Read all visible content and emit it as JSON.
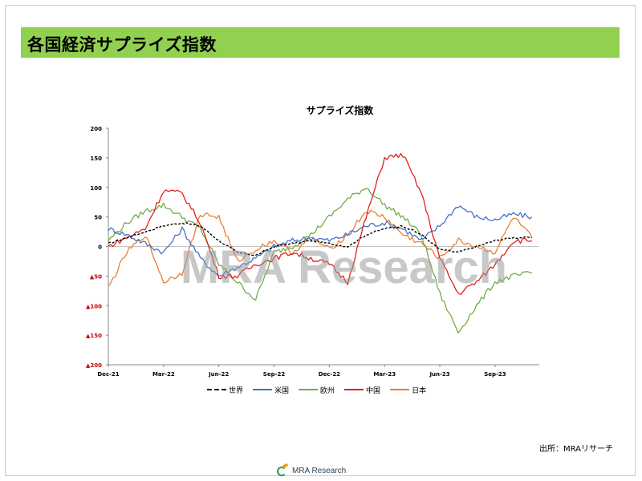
{
  "page": {
    "title": "各国経済サプライズ指数",
    "source": "出所：MRAリサーチ",
    "footer_logo_text": "MRA Research",
    "watermark": "MRA Research"
  },
  "chart_data": {
    "type": "line",
    "title": "サプライズ指数",
    "xlabel": "",
    "ylabel": "",
    "ylim": [
      -200,
      200
    ],
    "y_ticks": [
      200,
      150,
      100,
      50,
      0,
      -50,
      -100,
      -150,
      -200
    ],
    "y_tick_labels": [
      "200",
      "150",
      "100",
      "50",
      "0",
      "▲50",
      "▲100",
      "▲150",
      "▲200"
    ],
    "negative_tick_color": "#cc0000",
    "x_tick_labels": [
      "Dec-21",
      "Mar-22",
      "Jun-22",
      "Sep-22",
      "Dec-22",
      "Mar-23",
      "Jun-23",
      "Sep-23"
    ],
    "x_tick_dates": [
      "2021-12",
      "2022-03",
      "2022-06",
      "2022-09",
      "2022-12",
      "2023-03",
      "2023-06",
      "2023-09"
    ],
    "grid": false,
    "legend_position": "bottom",
    "series": [
      {
        "name": "世界",
        "color": "#000000",
        "dash": true,
        "x": [
          "2021-12",
          "2022-01",
          "2022-02",
          "2022-03",
          "2022-04",
          "2022-05",
          "2022-06",
          "2022-07",
          "2022-08",
          "2022-09",
          "2022-10",
          "2022-11",
          "2022-12",
          "2023-01",
          "2023-02",
          "2023-03",
          "2023-04",
          "2023-05",
          "2023-06",
          "2023-07",
          "2023-08",
          "2023-09",
          "2023-10",
          "2023-11"
        ],
        "values": [
          5,
          15,
          25,
          35,
          40,
          35,
          10,
          -10,
          -15,
          0,
          5,
          10,
          5,
          0,
          20,
          30,
          35,
          20,
          -5,
          -10,
          0,
          10,
          15,
          15
        ]
      },
      {
        "name": "米国",
        "color": "#4472c4",
        "dash": false,
        "x": [
          "2021-12",
          "2022-01",
          "2022-02",
          "2022-03",
          "2022-04",
          "2022-05",
          "2022-06",
          "2022-07",
          "2022-08",
          "2022-09",
          "2022-10",
          "2022-11",
          "2022-12",
          "2023-01",
          "2023-02",
          "2023-03",
          "2023-04",
          "2023-05",
          "2023-06",
          "2023-07",
          "2023-08",
          "2023-09",
          "2023-10",
          "2023-11"
        ],
        "values": [
          30,
          20,
          5,
          -10,
          30,
          -20,
          -50,
          -35,
          -20,
          0,
          10,
          15,
          10,
          20,
          35,
          40,
          30,
          10,
          35,
          70,
          50,
          45,
          55,
          50
        ]
      },
      {
        "name": "欧州",
        "color": "#70ad47",
        "dash": false,
        "x": [
          "2021-12",
          "2022-01",
          "2022-02",
          "2022-03",
          "2022-04",
          "2022-05",
          "2022-06",
          "2022-07",
          "2022-08",
          "2022-09",
          "2022-10",
          "2022-11",
          "2022-12",
          "2023-01",
          "2023-02",
          "2023-03",
          "2023-04",
          "2023-05",
          "2023-06",
          "2023-07",
          "2023-08",
          "2023-09",
          "2023-10",
          "2023-11"
        ],
        "values": [
          10,
          40,
          60,
          70,
          50,
          30,
          -30,
          -60,
          -90,
          -10,
          0,
          20,
          50,
          80,
          100,
          70,
          50,
          20,
          -80,
          -145,
          -100,
          -60,
          -50,
          -45
        ]
      },
      {
        "name": "中国",
        "color": "#e02020",
        "dash": false,
        "x": [
          "2021-12",
          "2022-01",
          "2022-02",
          "2022-03",
          "2022-04",
          "2022-05",
          "2022-06",
          "2022-07",
          "2022-08",
          "2022-09",
          "2022-10",
          "2022-11",
          "2022-12",
          "2023-01",
          "2023-02",
          "2023-03",
          "2023-04",
          "2023-05",
          "2023-06",
          "2023-07",
          "2023-08",
          "2023-09",
          "2023-10",
          "2023-11"
        ],
        "values": [
          0,
          15,
          30,
          95,
          90,
          40,
          -50,
          -50,
          -30,
          -20,
          -10,
          -20,
          -30,
          -60,
          50,
          150,
          155,
          90,
          -20,
          -80,
          -60,
          -30,
          10,
          10
        ]
      },
      {
        "name": "日本",
        "color": "#ed7d31",
        "dash": false,
        "x": [
          "2021-12",
          "2022-01",
          "2022-02",
          "2022-03",
          "2022-04",
          "2022-05",
          "2022-06",
          "2022-07",
          "2022-08",
          "2022-09",
          "2022-10",
          "2022-11",
          "2022-12",
          "2023-01",
          "2023-02",
          "2023-03",
          "2023-04",
          "2023-05",
          "2023-06",
          "2023-07",
          "2023-08",
          "2023-09",
          "2023-10",
          "2023-11"
        ],
        "values": [
          -70,
          -10,
          20,
          -60,
          -45,
          55,
          50,
          -25,
          -5,
          10,
          -10,
          15,
          -5,
          20,
          60,
          50,
          20,
          5,
          -20,
          10,
          0,
          -10,
          50,
          15
        ]
      }
    ]
  }
}
